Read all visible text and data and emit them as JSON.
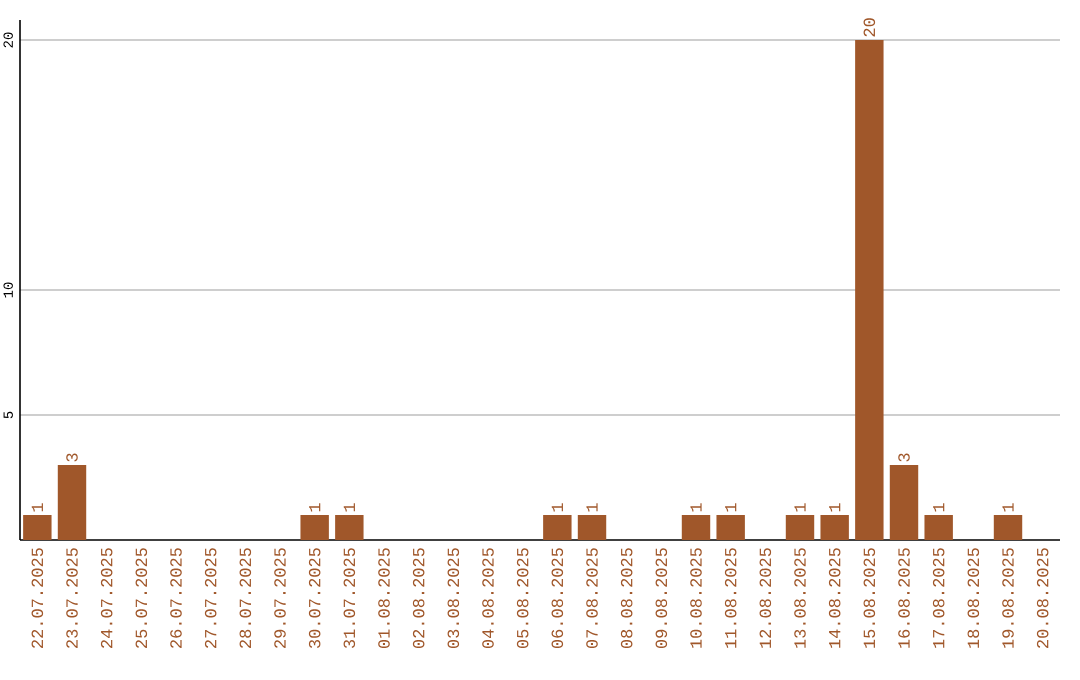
{
  "chart_data": {
    "type": "bar",
    "categories": [
      "22.07.2025",
      "23.07.2025",
      "24.07.2025",
      "25.07.2025",
      "26.07.2025",
      "27.07.2025",
      "28.07.2025",
      "29.07.2025",
      "30.07.2025",
      "31.07.2025",
      "01.08.2025",
      "02.08.2025",
      "03.08.2025",
      "04.08.2025",
      "05.08.2025",
      "06.08.2025",
      "07.08.2025",
      "08.08.2025",
      "09.08.2025",
      "10.08.2025",
      "11.08.2025",
      "12.08.2025",
      "13.08.2025",
      "14.08.2025",
      "15.08.2025",
      "16.08.2025",
      "17.08.2025",
      "18.08.2025",
      "19.08.2025",
      "20.08.2025"
    ],
    "values": [
      1,
      3,
      0,
      0,
      0,
      0,
      0,
      0,
      1,
      1,
      0,
      0,
      0,
      0,
      0,
      1,
      1,
      0,
      0,
      1,
      1,
      0,
      1,
      1,
      20,
      3,
      1,
      0,
      1,
      0
    ],
    "value_labels": [
      "1",
      "3",
      null,
      null,
      null,
      null,
      null,
      null,
      "1",
      "1",
      null,
      null,
      null,
      null,
      null,
      "1",
      "1",
      null,
      null,
      "1",
      "1",
      null,
      "1",
      "1",
      "20",
      "3",
      "1",
      null,
      "1",
      null
    ],
    "color": "#a0572a",
    "ylim": [
      0,
      20.8
    ],
    "yticks": [
      5,
      10,
      20
    ],
    "grid": "y"
  }
}
